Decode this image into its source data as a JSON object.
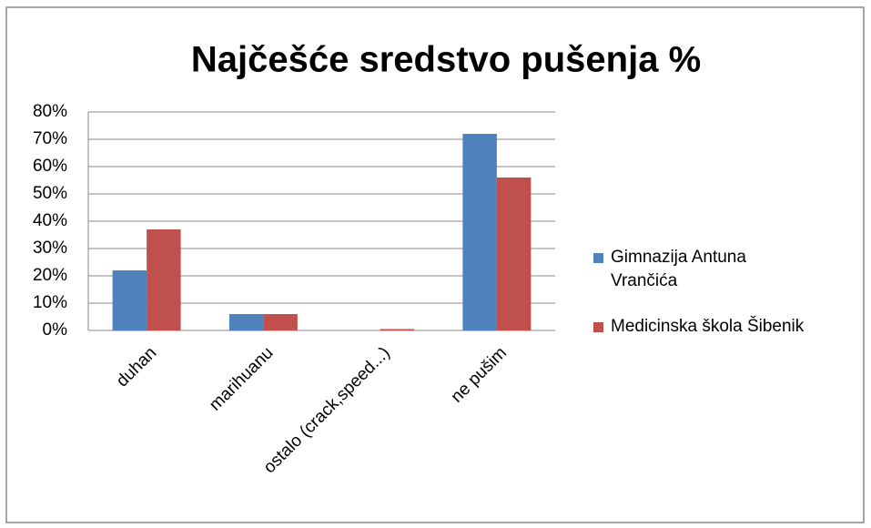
{
  "chart_data": {
    "type": "bar",
    "title": "Najčešće sredstvo pušenja %",
    "categories": [
      "duhan",
      "marihuanu",
      "ostalo (crack,speed...)",
      "ne pušim"
    ],
    "series": [
      {
        "name": "Gimnazija Antuna Vrančića",
        "color": "#4f81bd",
        "values": [
          22,
          6,
          0,
          72
        ]
      },
      {
        "name": "Medicinska škola Šibenik",
        "color": "#c0504d",
        "values": [
          37,
          6,
          0.5,
          56
        ]
      }
    ],
    "ylim": [
      0,
      80
    ],
    "yticks": [
      {
        "value": 0,
        "label": "0%"
      },
      {
        "value": 10,
        "label": "10%"
      },
      {
        "value": 20,
        "label": "20%"
      },
      {
        "value": 30,
        "label": "30%"
      },
      {
        "value": 40,
        "label": "40%"
      },
      {
        "value": 50,
        "label": "50%"
      },
      {
        "value": 60,
        "label": "60%"
      },
      {
        "value": 70,
        "label": "70%"
      },
      {
        "value": 80,
        "label": "80%"
      }
    ],
    "grid": true,
    "legend": "right"
  }
}
